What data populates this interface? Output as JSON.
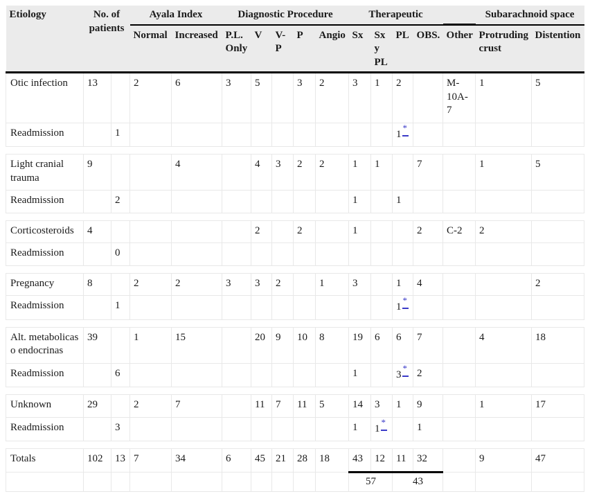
{
  "colors": {
    "footnote_blue": "#3a3ac8",
    "header_background": "#ebebeb",
    "gridline": "#e8e8e8",
    "rule_black": "#000000"
  },
  "table": {
    "header": {
      "etiology": "Etiology",
      "no_of_patients": "No. of patients",
      "groups": {
        "ayala": "Ayala Index",
        "diagnostic": "Diagnostic Procedure",
        "therapeutic": "Therapeutic",
        "subarachnoid": "Subarachnoid space"
      },
      "sub": [
        "Normal",
        "Increased",
        "P.L. Only",
        "V",
        "V-P",
        "P",
        "Angio",
        "Sx",
        "Sx y PL",
        "PL",
        "OBS.",
        "Other",
        "Protruding crust",
        "Distention"
      ]
    },
    "rows": [
      {
        "type": "main",
        "cells": [
          "Otic infection",
          "13",
          "",
          "2",
          "6",
          "3",
          "5",
          "",
          "3",
          "2",
          "3",
          "1",
          "2",
          "",
          "M-10A-7",
          "1",
          "5"
        ]
      },
      {
        "type": "readmission",
        "cells": [
          "Readmission",
          "",
          "1",
          "",
          "",
          "",
          "",
          "",
          "",
          "",
          "",
          "",
          "1*",
          "",
          "",
          "",
          ""
        ]
      },
      {
        "type": "separator",
        "cells": []
      },
      {
        "type": "main",
        "cells": [
          "Light cranial trauma",
          "9",
          "",
          "",
          "4",
          "",
          "4",
          "3",
          "2",
          "2",
          "1",
          "1",
          "",
          "7",
          "",
          "1",
          "5"
        ]
      },
      {
        "type": "readmission",
        "cells": [
          "Readmission",
          "",
          "2",
          "",
          "",
          "",
          "",
          "",
          "",
          "",
          "1",
          "",
          "1",
          "",
          "",
          "",
          ""
        ]
      },
      {
        "type": "separator",
        "cells": []
      },
      {
        "type": "main",
        "cells": [
          "Corticosteroids",
          "4",
          "",
          "",
          "",
          "",
          "2",
          "",
          "2",
          "",
          "1",
          "",
          "",
          "2",
          "C-2",
          "2",
          ""
        ]
      },
      {
        "type": "readmission",
        "cells": [
          "Readmission",
          "",
          "0",
          "",
          "",
          "",
          "",
          "",
          "",
          "",
          "",
          "",
          "",
          "",
          "",
          "",
          ""
        ]
      },
      {
        "type": "separator",
        "cells": []
      },
      {
        "type": "main",
        "cells": [
          "Pregnancy",
          "8",
          "",
          "2",
          "2",
          "3",
          "3",
          "2",
          "",
          "1",
          "3",
          "",
          "1",
          "4",
          "",
          "",
          "2"
        ]
      },
      {
        "type": "readmission",
        "cells": [
          "Readmission",
          "",
          "1",
          "",
          "",
          "",
          "",
          "",
          "",
          "",
          "",
          "",
          "1*",
          "",
          "",
          "",
          ""
        ]
      },
      {
        "type": "separator",
        "cells": []
      },
      {
        "type": "main",
        "cells": [
          "Alt. metabolicas o endocrinas",
          "39",
          "",
          "1",
          "15",
          "",
          "20",
          "9",
          "10",
          "8",
          "19",
          "6",
          "6",
          "7",
          "",
          "4",
          "18"
        ]
      },
      {
        "type": "readmission",
        "cells": [
          "Readmission",
          "",
          "6",
          "",
          "",
          "",
          "",
          "",
          "",
          "",
          "1",
          "",
          "3*",
          "2",
          "",
          "",
          ""
        ]
      },
      {
        "type": "separator",
        "cells": []
      },
      {
        "type": "main",
        "cells": [
          "Unknown",
          "29",
          "",
          "2",
          "7",
          "",
          "11",
          "7",
          "11",
          "5",
          "14",
          "3",
          "1",
          "9",
          "",
          "1",
          "17"
        ]
      },
      {
        "type": "readmission",
        "cells": [
          "Readmission",
          "",
          "3",
          "",
          "",
          "",
          "",
          "",
          "",
          "",
          "1",
          "1*",
          "",
          "1",
          "",
          "",
          ""
        ]
      },
      {
        "type": "separator",
        "cells": []
      },
      {
        "type": "totals",
        "cells": [
          "Totals",
          "102",
          "13",
          "7",
          "34",
          "6",
          "45",
          "21",
          "28",
          "18",
          "43",
          "12",
          "11",
          "32",
          "",
          "9",
          "47"
        ]
      },
      {
        "type": "subtotal",
        "cells": [
          "57",
          "43"
        ]
      }
    ]
  }
}
